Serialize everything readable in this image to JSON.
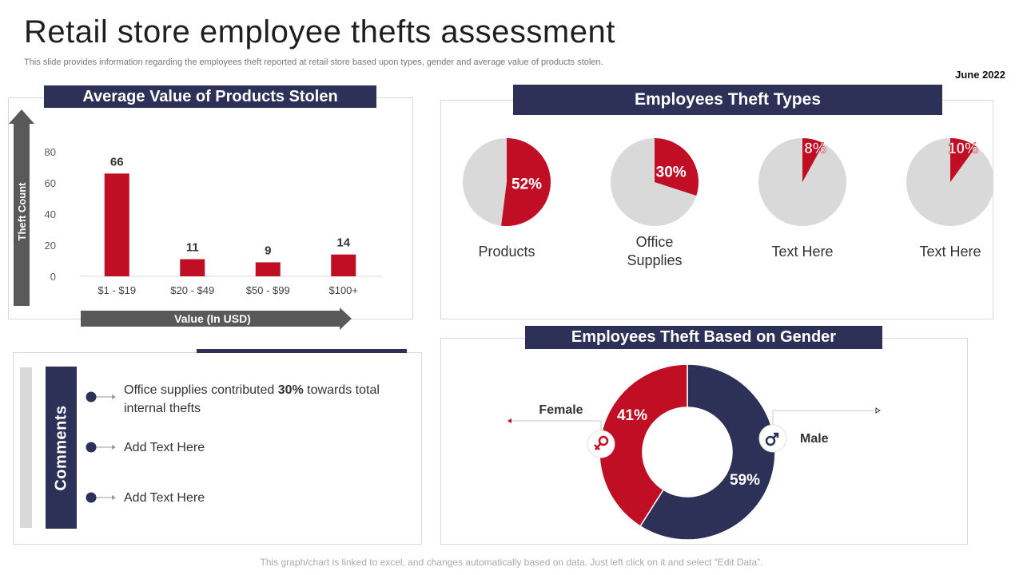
{
  "header": {
    "title": "Retail store employee thefts assessment",
    "subtitle": "This slide provides information regarding the employees theft reported at retail store based upon types, gender and average value of products stolen.",
    "date": "June 2022"
  },
  "footer": "This graph/chart is linked to excel, and changes automatically based on data. Just left click on it and select “Edit Data”.",
  "colors": {
    "navy": "#2d3157",
    "red": "#c00f24",
    "grey": "#d9d9d9",
    "arrow": "#595959"
  },
  "chart_data": [
    {
      "type": "bar",
      "title": "Average Value of Products Stolen",
      "xlabel": "Value (In USD)",
      "ylabel": "Theft Count",
      "categories": [
        "$1 - $19",
        "$20 - $49",
        "$50 - $99",
        "$100+"
      ],
      "values": [
        66,
        11,
        9,
        14
      ],
      "value_labels": [
        "66",
        "11",
        "9",
        "14"
      ],
      "yticks": [
        "0",
        "20",
        "40",
        "60",
        "80"
      ],
      "ylim": [
        0,
        80
      ],
      "color": "#c00f24"
    },
    {
      "type": "pie",
      "title": "Employees Theft Types",
      "items": [
        {
          "label": "Products",
          "value": 52,
          "display": "52%"
        },
        {
          "label": "Office Supplies",
          "value": 30,
          "display": "30%"
        },
        {
          "label": "Text Here",
          "value": 8,
          "display": "8%"
        },
        {
          "label": "Text Here",
          "value": 10,
          "display": "10%"
        }
      ]
    },
    {
      "type": "pie",
      "subtype": "donut",
      "title": "Employees Theft Based on Gender",
      "items": [
        {
          "label": "Female",
          "value": 41,
          "display": "41%",
          "color": "#c00f24",
          "icon": "female-icon"
        },
        {
          "label": "Male",
          "value": 59,
          "display": "59%",
          "color": "#2d3157",
          "icon": "male-icon"
        }
      ]
    }
  ],
  "comments": {
    "label": "Comments",
    "items": [
      {
        "pre": "Office supplies contributed ",
        "bold": "30%",
        "post": " towards total internal thefts"
      },
      {
        "pre": "Add Text Here",
        "bold": "",
        "post": ""
      },
      {
        "pre": "Add Text Here",
        "bold": "",
        "post": ""
      }
    ]
  }
}
